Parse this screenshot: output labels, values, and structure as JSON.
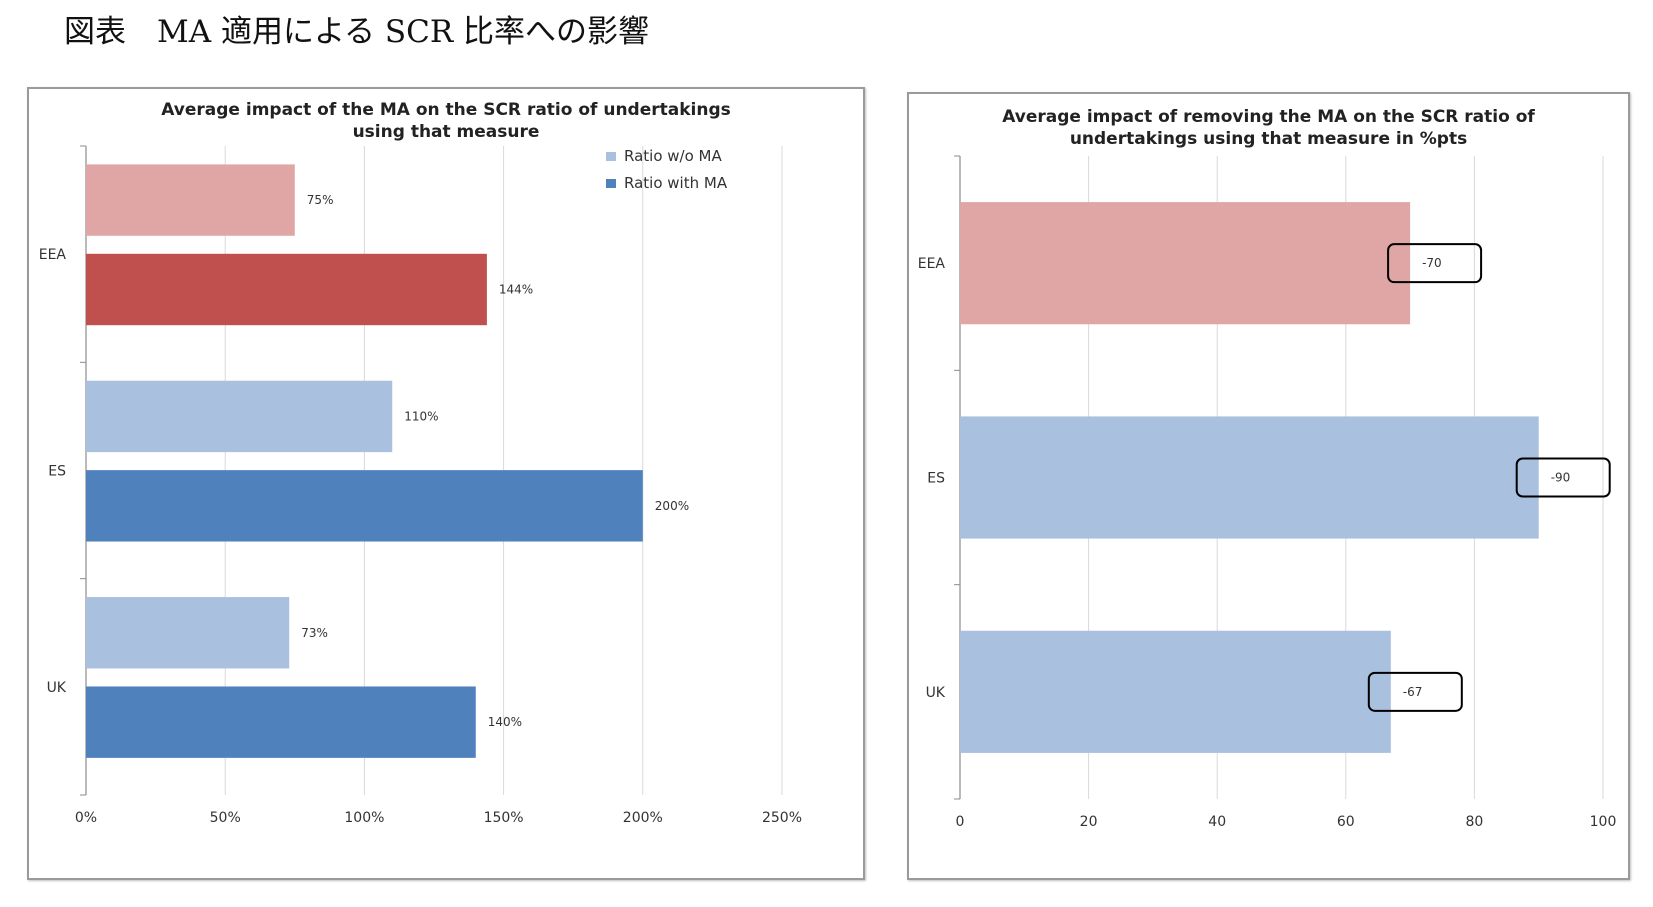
{
  "page": {
    "heading": "図表　MA 適用による SCR 比率への影響"
  },
  "chart_data": [
    {
      "type": "bar",
      "orientation": "horizontal",
      "title": "Average impact of the MA on the SCR ratio of undertakings using that measure",
      "title_lines": [
        "Average impact of the MA on the SCR ratio of undertakings",
        "using that measure"
      ],
      "categories": [
        "EEA",
        "ES",
        "UK"
      ],
      "series": [
        {
          "name": "Ratio w/o MA",
          "values": [
            75,
            110,
            73
          ],
          "data_labels": [
            "75%",
            "110%",
            "73%"
          ],
          "color": "#a9c0de",
          "eea_color": "#e0a6a6"
        },
        {
          "name": "Ratio with MA",
          "values": [
            144,
            200,
            140
          ],
          "data_labels": [
            "144%",
            "200%",
            "140%"
          ],
          "color": "#4f81bd",
          "eea_color": "#c0504d"
        }
      ],
      "xlim": [
        0,
        250
      ],
      "x_ticks": [
        0,
        50,
        100,
        150,
        200,
        250
      ],
      "x_tick_labels": [
        "0%",
        "50%",
        "100%",
        "150%",
        "200%",
        "250%"
      ],
      "grid": true,
      "legend_position": "top-right",
      "xlabel": "",
      "ylabel": ""
    },
    {
      "type": "bar",
      "orientation": "horizontal",
      "title": "Average impact of removing the MA on the SCR ratio of undertakings using that measure in %pts",
      "title_lines": [
        "Average impact of removing the MA on the SCR ratio of",
        "undertakings using that measure in %pts"
      ],
      "categories": [
        "EEA",
        "ES",
        "UK"
      ],
      "values": [
        70,
        90,
        67
      ],
      "data_labels": [
        "-70",
        "-90",
        "-67"
      ],
      "colors": [
        "#e0a6a6",
        "#a9c0de",
        "#a9c0de"
      ],
      "xlim": [
        0,
        100
      ],
      "x_ticks": [
        0,
        20,
        40,
        60,
        80,
        100
      ],
      "x_tick_labels": [
        "0",
        "20",
        "40",
        "60",
        "80",
        "100"
      ],
      "grid": true,
      "xlabel": "",
      "ylabel": ""
    }
  ]
}
